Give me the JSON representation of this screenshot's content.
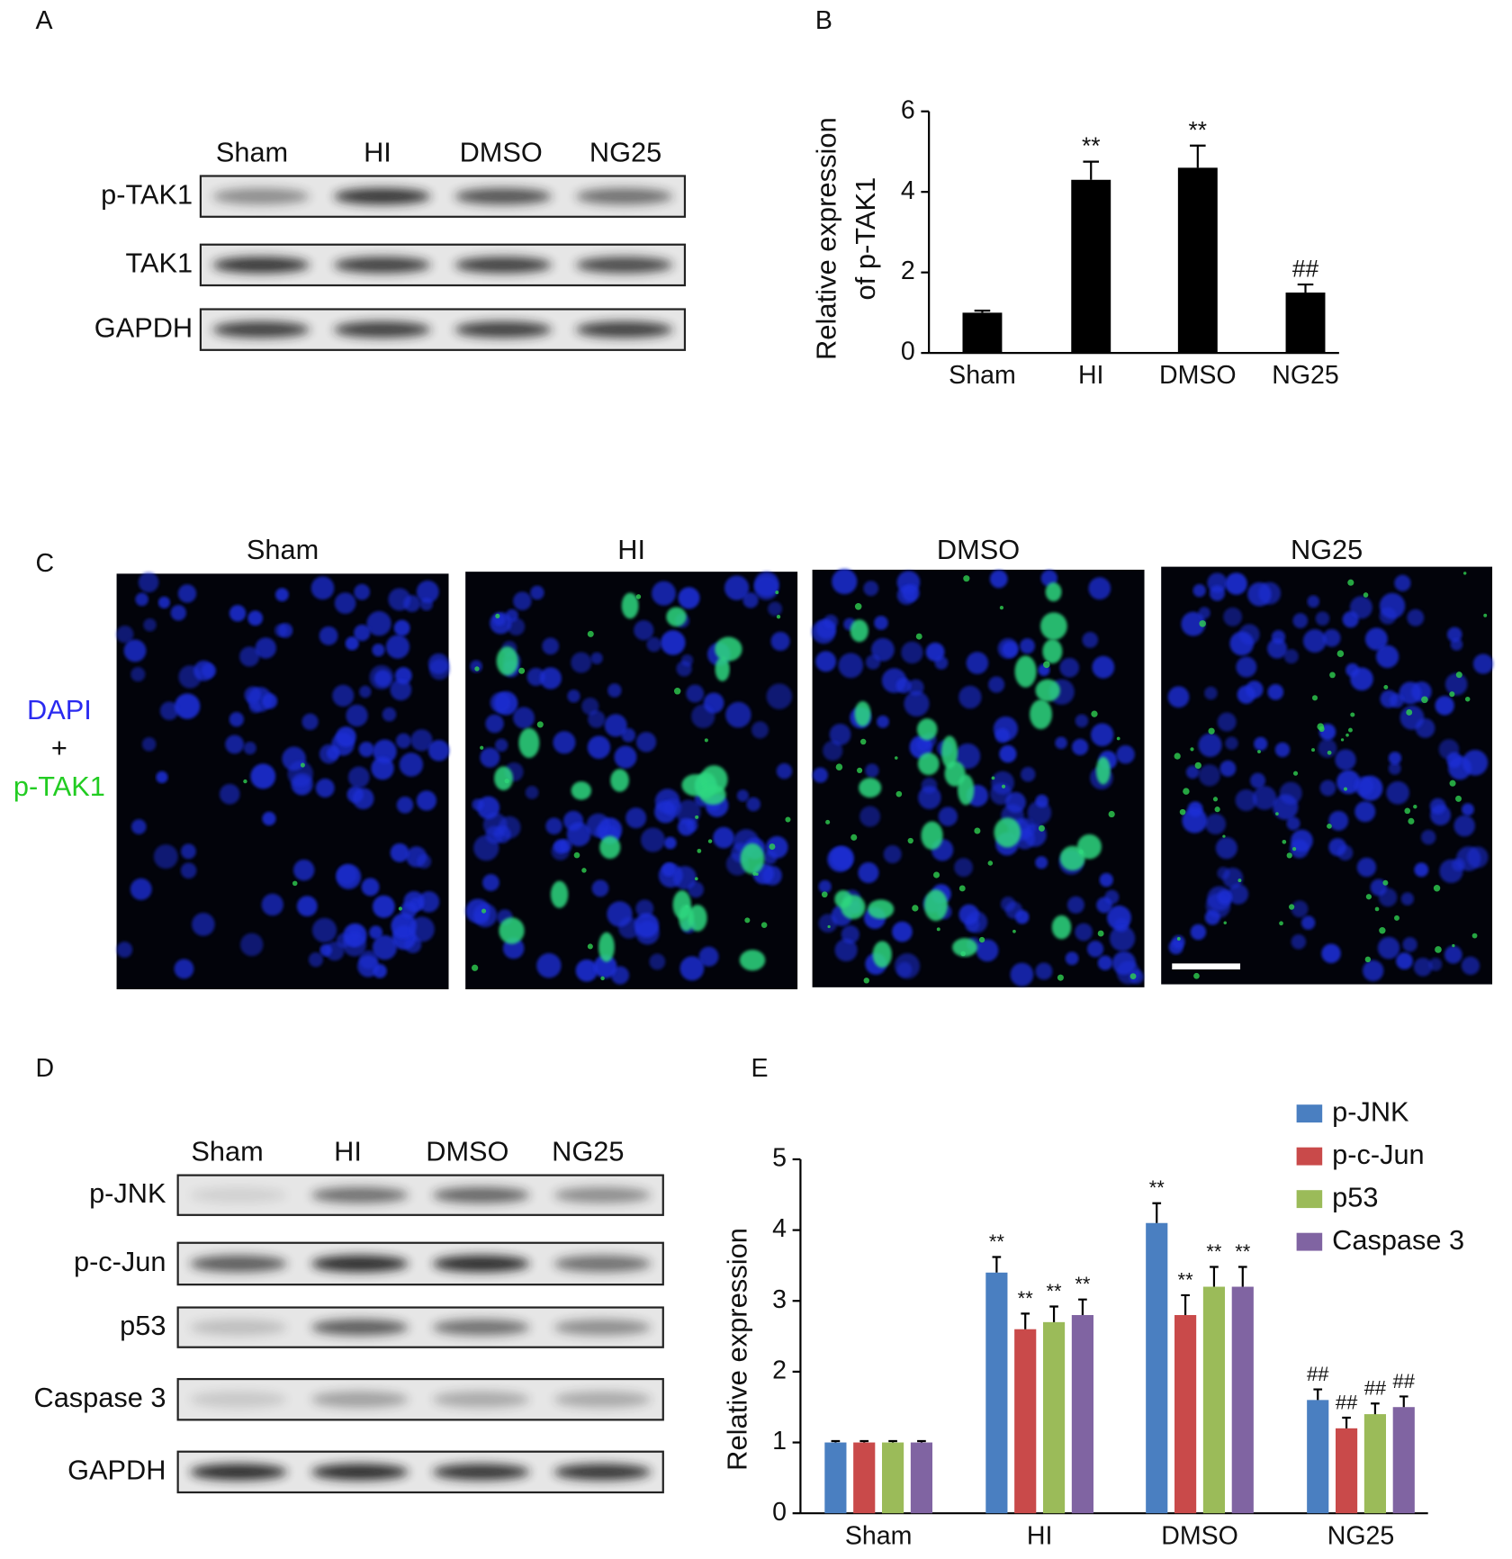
{
  "panel_labels": [
    "A",
    "B",
    "C",
    "D",
    "E"
  ],
  "blot_a": {
    "lanes": [
      "Sham",
      "HI",
      "DMSO",
      "NG25"
    ],
    "rows": [
      "p-TAK1",
      "TAK1",
      "GAPDH"
    ]
  },
  "microscopy": {
    "groups": [
      "Sham",
      "HI",
      "DMSO",
      "NG25"
    ],
    "stain_1": "DAPI",
    "plus": "+",
    "stain_2": "p-TAK1"
  },
  "blot_d": {
    "lanes": [
      "Sham",
      "HI",
      "DMSO",
      "NG25"
    ],
    "rows": [
      "p-JNK",
      "p-c-Jun",
      "p53",
      "Caspase 3",
      "GAPDH"
    ]
  },
  "chart_data": [
    {
      "type": "bar",
      "y_label": [
        "Relative expression",
        "of p-TAK1"
      ],
      "categories": [
        "Sham",
        "HI",
        "DMSO",
        "NG25"
      ],
      "values": [
        1,
        4.3,
        4.6,
        1.5
      ],
      "errors": [
        0.05,
        0.45,
        0.55,
        0.2
      ],
      "annotations": [
        null,
        "**",
        "**",
        "##"
      ],
      "color": "#000000",
      "ylim": [
        0,
        6
      ],
      "yticks": [
        0,
        2,
        4,
        6
      ]
    },
    {
      "type": "grouped_bar",
      "y_label": "Relative expression",
      "categories": [
        "Sham",
        "HI",
        "DMSO",
        "NG25"
      ],
      "series": [
        {
          "name": "p-JNK",
          "color": "#4a7fc1",
          "values": [
            1,
            3.4,
            4.1,
            1.6
          ],
          "errors": [
            0.02,
            0.22,
            0.28,
            0.15
          ],
          "annotations": [
            null,
            "**",
            "**",
            "##"
          ]
        },
        {
          "name": "p-c-Jun",
          "color": "#c94a4a",
          "values": [
            1,
            2.6,
            2.8,
            1.2
          ],
          "errors": [
            0.02,
            0.22,
            0.28,
            0.15
          ],
          "annotations": [
            null,
            "**",
            "**",
            "##"
          ]
        },
        {
          "name": "p53",
          "color": "#9bbb59",
          "values": [
            1,
            2.7,
            3.2,
            1.4
          ],
          "errors": [
            0.02,
            0.22,
            0.28,
            0.15
          ],
          "annotations": [
            null,
            "**",
            "**",
            "##"
          ]
        },
        {
          "name": "Caspase 3",
          "color": "#8064a2",
          "values": [
            1,
            2.8,
            3.2,
            1.5
          ],
          "errors": [
            0.02,
            0.22,
            0.28,
            0.15
          ],
          "annotations": [
            null,
            "**",
            "**",
            "##"
          ]
        }
      ],
      "ylim": [
        0,
        5
      ],
      "yticks": [
        0,
        1,
        2,
        3,
        4,
        5
      ],
      "legend": "top-right"
    }
  ]
}
